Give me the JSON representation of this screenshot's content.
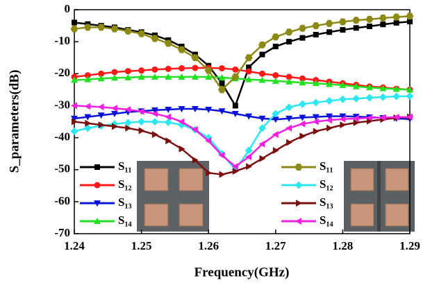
{
  "chart_data": {
    "type": "line",
    "x_label": "Frequency(GHz)",
    "y_label": "S_parameters(dB)",
    "xlim": [
      1.24,
      1.29
    ],
    "xticks": [
      1.24,
      1.25,
      1.26,
      1.27,
      1.28,
      1.29
    ],
    "ylim": [
      -70,
      0
    ],
    "yticks": [
      -70,
      -60,
      -50,
      -40,
      -30,
      -20,
      -10,
      0
    ],
    "x": [
      1.24,
      1.242,
      1.244,
      1.246,
      1.248,
      1.25,
      1.252,
      1.254,
      1.256,
      1.258,
      1.26,
      1.262,
      1.264,
      1.266,
      1.268,
      1.27,
      1.272,
      1.274,
      1.276,
      1.278,
      1.28,
      1.282,
      1.284,
      1.286,
      1.288,
      1.29
    ],
    "series": [
      {
        "name": "S₁₁",
        "color": "#000000",
        "marker": "square",
        "values": [
          -4,
          -4.5,
          -5,
          -5.5,
          -6.3,
          -7,
          -8,
          -9.5,
          -11.5,
          -14,
          -17.5,
          -23,
          -30,
          -18,
          -14,
          -11.5,
          -10,
          -8.8,
          -7.8,
          -7,
          -6.3,
          -5.7,
          -5.2,
          -4.6,
          -4.1,
          -3.7
        ]
      },
      {
        "name": "S₁₂",
        "color": "#ff1a1a",
        "marker": "circle",
        "values": [
          -21,
          -20.5,
          -20,
          -19.5,
          -19.2,
          -19,
          -18.7,
          -18.5,
          -18.3,
          -18.2,
          -18.2,
          -18.3,
          -18.7,
          -19.3,
          -20,
          -20.5,
          -21,
          -21.5,
          -22,
          -22.5,
          -23,
          -23.5,
          -24,
          -24.3,
          -24.7,
          -25
        ]
      },
      {
        "name": "S₁₃",
        "color": "#0a14d6",
        "marker": "tri-down",
        "values": [
          -34,
          -33.5,
          -33,
          -32.5,
          -32,
          -31.7,
          -31.4,
          -31.2,
          -31,
          -31,
          -31.2,
          -31.7,
          -32.5,
          -33.3,
          -34,
          -34.3,
          -34,
          -33.7,
          -33.5,
          -33.3,
          -33.3,
          -33.4,
          -33.6,
          -33.8,
          -34,
          -34.2
        ]
      },
      {
        "name": "S₁₄",
        "color": "#22e022",
        "marker": "tri-up",
        "values": [
          -22,
          -21.8,
          -21.5,
          -21.3,
          -21.2,
          -21,
          -21,
          -21,
          -21,
          -21,
          -21,
          -21.2,
          -21.5,
          -21.8,
          -22,
          -22.3,
          -22.5,
          -22.8,
          -23,
          -23.3,
          -23.6,
          -24,
          -24.3,
          -24.6,
          -24.8,
          -25
        ]
      },
      {
        "name": "S₁₁",
        "color": "#8c8a14",
        "marker": "hexagon",
        "values": [
          -6,
          -5.5,
          -5.5,
          -6,
          -6.7,
          -7.5,
          -9,
          -10.5,
          -12.5,
          -15,
          -19,
          -25,
          -21,
          -15,
          -11,
          -8.5,
          -7,
          -5.8,
          -5,
          -4.3,
          -3.8,
          -3.3,
          -3,
          -2.6,
          -2.3,
          -2
        ]
      },
      {
        "name": "S₁₂",
        "color": "#2ee6f0",
        "marker": "diamond",
        "values": [
          -38,
          -37,
          -36.3,
          -35.7,
          -35.3,
          -35,
          -35,
          -35.2,
          -36,
          -37.5,
          -40,
          -45,
          -50,
          -44,
          -37,
          -32.5,
          -30.5,
          -29.5,
          -29,
          -28.5,
          -28,
          -27.8,
          -27.5,
          -27.3,
          -27.1,
          -27
        ]
      },
      {
        "name": "S₁₃",
        "color": "#7a1010",
        "marker": "tri-right",
        "values": [
          -35,
          -35.5,
          -36,
          -36.5,
          -37,
          -37.8,
          -39,
          -41,
          -43.5,
          -47,
          -51,
          -51.5,
          -50.5,
          -49,
          -46.5,
          -44,
          -41.5,
          -39.5,
          -38,
          -37,
          -36,
          -35.3,
          -34.8,
          -34.3,
          -33.8,
          -33.5
        ]
      },
      {
        "name": "S₁₄",
        "color": "#f020e0",
        "marker": "tri-left",
        "values": [
          -30,
          -30.2,
          -30.4,
          -30.8,
          -31.2,
          -31.8,
          -32.5,
          -33.5,
          -35,
          -37.5,
          -41,
          -45.5,
          -49,
          -46,
          -42,
          -39,
          -37,
          -35.7,
          -35,
          -34.5,
          -34.2,
          -34,
          -33.8,
          -33.7,
          -33.6,
          -33.5
        ]
      }
    ]
  }
}
